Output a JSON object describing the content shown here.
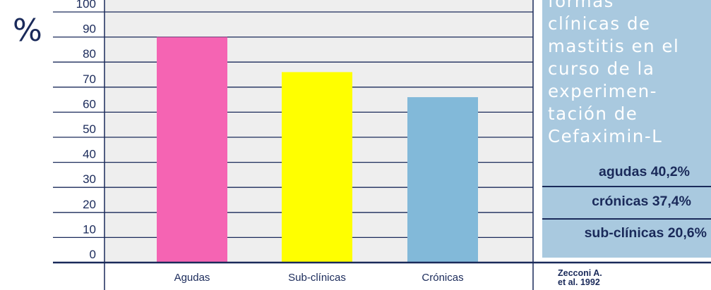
{
  "chart_data": {
    "type": "bar",
    "categories": [
      "Agudas",
      "Sub-clínicas",
      "Crónicas"
    ],
    "values": [
      90,
      76,
      66
    ],
    "ylabel": "%",
    "yticks": [
      0,
      10,
      20,
      30,
      40,
      50,
      60,
      70,
      80,
      90,
      100
    ],
    "ylim": [
      0,
      110
    ],
    "grid": true,
    "colors": [
      "#f564b3",
      "#ffff00",
      "#82b9d9"
    ]
  },
  "panel": {
    "title": "formas\nclínicas de\nmastitis en el\ncurso de la\nexperimen-\ntación de\nCefaximin-L",
    "stats": [
      "agudas 40,2%",
      "crónicas 37,4%",
      "sub-clínicas 20,6%"
    ],
    "citation": "Zecconi A.\net al. 1992",
    "background": "#a9c9df"
  },
  "colors": {
    "grid": "#1a2a5a",
    "plot_bg": "#eeeeee"
  }
}
